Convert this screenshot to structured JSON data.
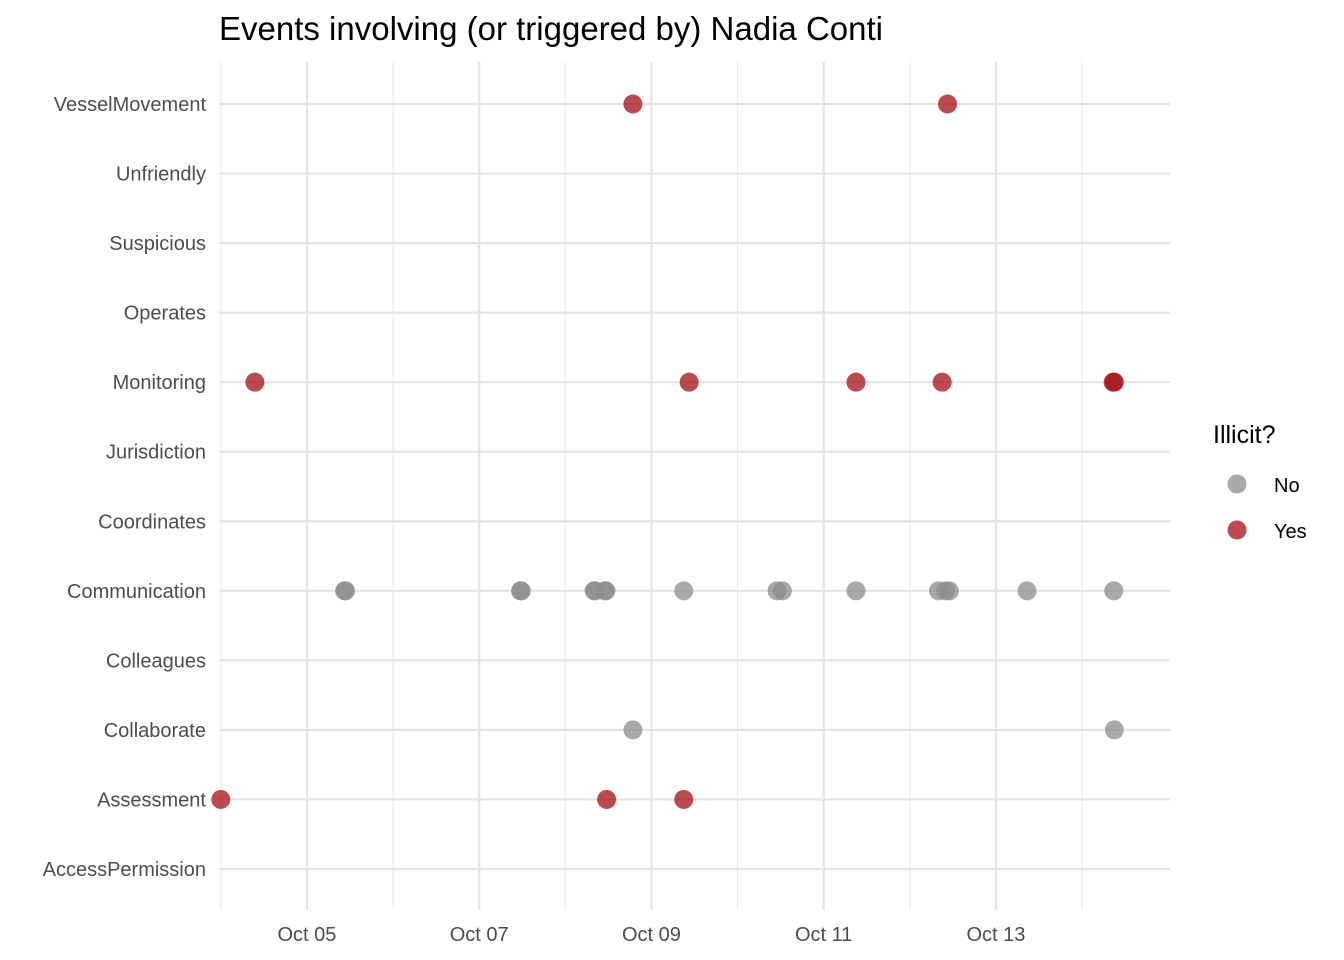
{
  "chart_data": {
    "type": "scatter",
    "title": "Events involving (or triggered by) Nadia Conti",
    "xlabel": "",
    "ylabel": "",
    "x_scale": "date",
    "xlim": [
      "2046-10-03T23:30",
      "2046-10-15T00:30"
    ],
    "x_tick_values": [
      "2046-10-05",
      "2046-10-07",
      "2046-10-09",
      "2046-10-11",
      "2046-10-13"
    ],
    "x_tick_labels": [
      "Oct 05",
      "Oct 07",
      "Oct 09",
      "Oct 11",
      "Oct 13"
    ],
    "categories": [
      "AccessPermission",
      "Assessment",
      "Collaborate",
      "Colleagues",
      "Communication",
      "Coordinates",
      "Jurisdiction",
      "Monitoring",
      "Operates",
      "Suspicious",
      "Unfriendly",
      "VesselMovement"
    ],
    "grid": true,
    "legend": {
      "title": "Illicit?",
      "position": "right",
      "entries": [
        {
          "label": "No",
          "color": "#8c8c8c"
        },
        {
          "label": "Yes",
          "color": "#a50f15"
        }
      ]
    },
    "series": [
      {
        "name": "No",
        "color": "#8c8c8c",
        "points": [
          {
            "x": "2046-10-05T10:30",
            "y": "Communication"
          },
          {
            "x": "2046-10-05T10:45",
            "y": "Communication"
          },
          {
            "x": "2046-10-07T11:30",
            "y": "Communication"
          },
          {
            "x": "2046-10-07T11:45",
            "y": "Communication"
          },
          {
            "x": "2046-10-08T08:00",
            "y": "Communication"
          },
          {
            "x": "2046-10-08T08:20",
            "y": "Communication"
          },
          {
            "x": "2046-10-08T11:00",
            "y": "Communication"
          },
          {
            "x": "2046-10-08T11:20",
            "y": "Communication"
          },
          {
            "x": "2046-10-09T09:00",
            "y": "Communication"
          },
          {
            "x": "2046-10-10T11:00",
            "y": "Communication"
          },
          {
            "x": "2046-10-10T12:30",
            "y": "Communication"
          },
          {
            "x": "2046-10-11T09:00",
            "y": "Communication"
          },
          {
            "x": "2046-10-12T08:00",
            "y": "Communication"
          },
          {
            "x": "2046-10-12T10:00",
            "y": "Communication"
          },
          {
            "x": "2046-10-12T11:00",
            "y": "Communication"
          },
          {
            "x": "2046-10-13T08:40",
            "y": "Communication"
          },
          {
            "x": "2046-10-14T08:50",
            "y": "Communication"
          },
          {
            "x": "2046-10-08T18:50",
            "y": "Collaborate"
          },
          {
            "x": "2046-10-14T09:00",
            "y": "Collaborate"
          }
        ]
      },
      {
        "name": "Yes",
        "color": "#a50f15",
        "points": [
          {
            "x": "2046-10-08T18:50",
            "y": "VesselMovement"
          },
          {
            "x": "2046-10-12T10:30",
            "y": "VesselMovement"
          },
          {
            "x": "2046-10-04T09:30",
            "y": "Monitoring"
          },
          {
            "x": "2046-10-09T10:30",
            "y": "Monitoring"
          },
          {
            "x": "2046-10-11T09:00",
            "y": "Monitoring"
          },
          {
            "x": "2046-10-12T09:00",
            "y": "Monitoring"
          },
          {
            "x": "2046-10-14T08:40",
            "y": "Monitoring"
          },
          {
            "x": "2046-10-14T09:00",
            "y": "Monitoring"
          },
          {
            "x": "2046-10-04T00:00",
            "y": "Assessment"
          },
          {
            "x": "2046-10-08T11:30",
            "y": "Assessment"
          },
          {
            "x": "2046-10-09T09:00",
            "y": "Assessment"
          }
        ]
      }
    ]
  }
}
